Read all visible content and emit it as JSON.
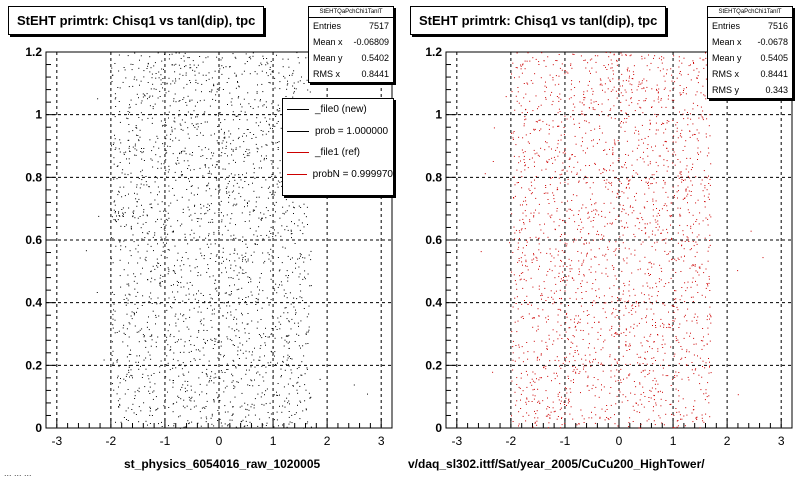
{
  "chart_data": [
    {
      "type": "scatter",
      "title": "StEHT primtrk: Chisq1 vs tanl(dip), tpc",
      "xlabel": "st_physics_6054016_raw_1020005",
      "ylabel": "",
      "xlim": [
        -3.2,
        3.2
      ],
      "ylim": [
        0,
        1.2
      ],
      "xticks": [
        "-3",
        "-2",
        "-1",
        "0",
        "1",
        "2",
        "3"
      ],
      "yticks": [
        "0",
        "0.2",
        "0.4",
        "0.6",
        "0.8",
        "1",
        "1.2"
      ],
      "grid": true,
      "marker_color": "#000000",
      "approx_x_range": [
        -2.0,
        1.7
      ],
      "approx_y_range": [
        0,
        1.2
      ],
      "stats": {
        "name": "StEHTQaPchChi1TanlT",
        "entries": "7517",
        "mean_x": "-0.06809",
        "mean_y": "0.5402",
        "rms_x": "0.8441"
      },
      "legend": [
        {
          "label": "_file0 (new)",
          "color": "#000000"
        },
        {
          "label": "prob = 1.000000",
          "color": "#000000"
        },
        {
          "label": "_file1 (ref)",
          "color": "#cc0000"
        },
        {
          "label": "probN = 0.999970",
          "color": "#cc0000"
        }
      ],
      "legend_placement": "top-right"
    },
    {
      "type": "scatter",
      "title": "StEHT primtrk: Chisq1 vs tanl(dip), tpc",
      "xlabel": "v/daq_sl302.ittf/Sat/year_2005/CuCu200_HighTower/",
      "ylabel": "",
      "xlim": [
        -3.2,
        3.2
      ],
      "ylim": [
        0,
        1.2
      ],
      "xticks": [
        "-3",
        "-2",
        "-1",
        "0",
        "1",
        "2",
        "3"
      ],
      "yticks": [
        "0",
        "0.2",
        "0.4",
        "0.6",
        "0.8",
        "1",
        "1.2"
      ],
      "grid": true,
      "marker_color": "#cc0000",
      "approx_x_range": [
        -2.0,
        1.7
      ],
      "approx_y_range": [
        0,
        1.2
      ],
      "stats": {
        "name": "StEHTQaPchChi1TanlT",
        "entries": "7516",
        "mean_x": "-0.0678",
        "mean_y": "0.5405",
        "rms_x": "0.8441",
        "rms_y": "0.343"
      }
    }
  ],
  "stat_labels": {
    "entries": "Entries",
    "mean_x": "Mean x",
    "mean_y": "Mean y",
    "rms_x": "RMS x",
    "rms_y": "RMS y"
  },
  "footer_text": "... ... ...",
  "colors": {
    "background": "#ffffff",
    "grid": "#000000"
  }
}
